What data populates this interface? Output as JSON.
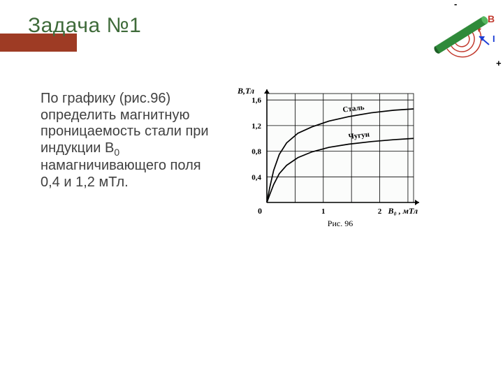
{
  "title": "Задача №1",
  "bullet_glyph": "",
  "body_parts": {
    "p1": "По графику (рис.96) определить магнитную проницаемость стали при индукции В",
    "sub": "0",
    "p2": " намагничивающего поля 0,4 и 1,2 мТл."
  },
  "decor": {
    "rod_color": "#2f8a3a",
    "rod_dark": "#1f5f27",
    "field_color": "#c23a2e",
    "current_color": "#1d3fd6",
    "labels": {
      "minus": "-",
      "plus": "+",
      "B": "B",
      "I": "I"
    }
  },
  "chart": {
    "type": "line",
    "background_color": "#fbfcfb",
    "axis_color": "#000000",
    "grid_color": "#000000",
    "grid_linewidth": 0.8,
    "axis_linewidth": 1.6,
    "curve_linewidth": 1.7,
    "x_axis": {
      "label": "B₀ , мТл",
      "lim": [
        0,
        2.6
      ],
      "ticks": [
        0,
        1,
        2
      ],
      "tick_labels": [
        "0",
        "1",
        "2"
      ]
    },
    "y_axis": {
      "label": "B,Тл",
      "lim": [
        0,
        1.7
      ],
      "ticks": [
        0.4,
        0.8,
        1.2,
        1.6
      ],
      "tick_labels": [
        "0,4",
        "0,8",
        "1,2",
        "1,6"
      ]
    },
    "origin_label": "0",
    "series": [
      {
        "name": "Сталь",
        "label": "Сталь",
        "color": "#000000",
        "points": [
          [
            0,
            0
          ],
          [
            0.05,
            0.23
          ],
          [
            0.12,
            0.5
          ],
          [
            0.22,
            0.75
          ],
          [
            0.35,
            0.93
          ],
          [
            0.55,
            1.08
          ],
          [
            0.8,
            1.18
          ],
          [
            1.1,
            1.27
          ],
          [
            1.45,
            1.34
          ],
          [
            1.85,
            1.4
          ],
          [
            2.25,
            1.44
          ],
          [
            2.6,
            1.46
          ]
        ],
        "label_pos": [
          1.35,
          1.41
        ]
      },
      {
        "name": "Чугун",
        "label": "Чугун",
        "color": "#000000",
        "points": [
          [
            0,
            0
          ],
          [
            0.05,
            0.12
          ],
          [
            0.12,
            0.28
          ],
          [
            0.22,
            0.45
          ],
          [
            0.35,
            0.58
          ],
          [
            0.55,
            0.7
          ],
          [
            0.8,
            0.79
          ],
          [
            1.1,
            0.86
          ],
          [
            1.45,
            0.91
          ],
          [
            1.85,
            0.95
          ],
          [
            2.25,
            0.98
          ],
          [
            2.6,
            1.0
          ]
        ],
        "label_pos": [
          1.45,
          0.99
        ]
      }
    ],
    "caption": "Рис. 96",
    "label_fontsize": 12,
    "tick_fontsize": 11,
    "caption_fontsize": 12
  }
}
